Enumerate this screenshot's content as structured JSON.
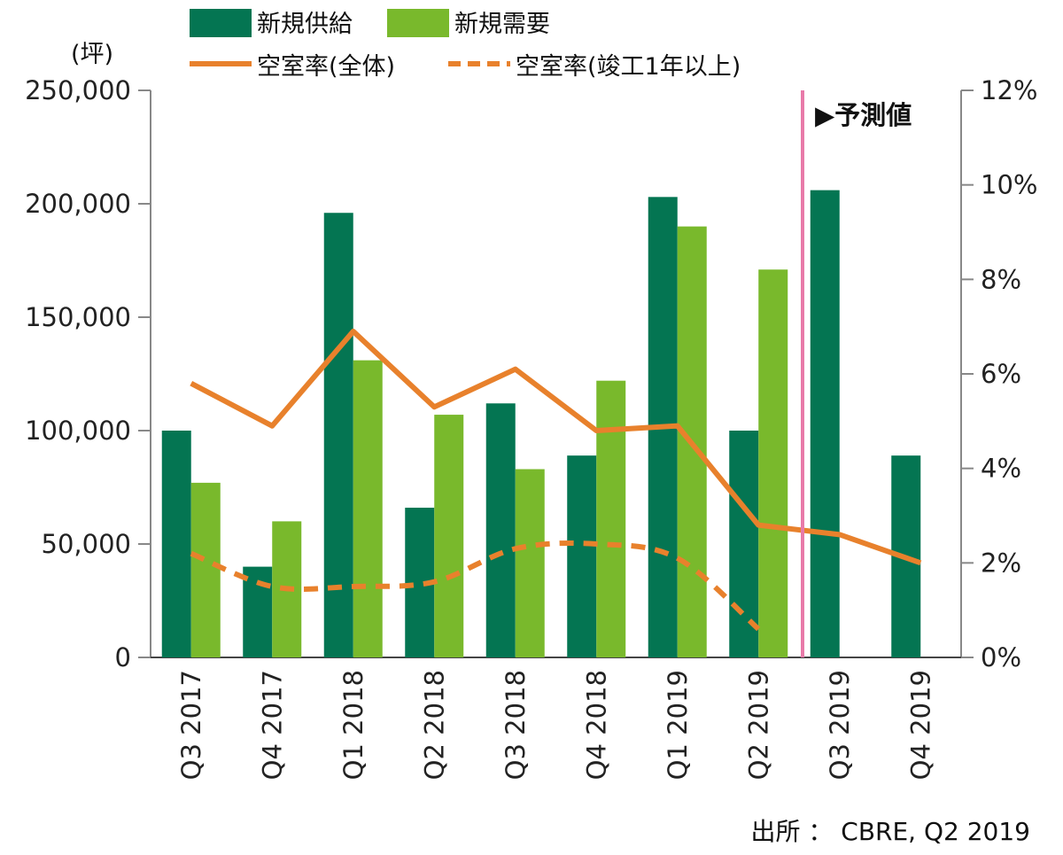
{
  "chart_data": {
    "type": "bar",
    "unit_label": "(坪)",
    "categories": [
      "Q3 2017",
      "Q4 2017",
      "Q1 2018",
      "Q2 2018",
      "Q3 2018",
      "Q4 2018",
      "Q1 2019",
      "Q2 2019",
      "Q3 2019",
      "Q4 2019"
    ],
    "y_left": {
      "range": [
        0,
        250000
      ],
      "ticks": [
        "0",
        "50,000",
        "100,000",
        "150,000",
        "200,000",
        "250,000"
      ]
    },
    "y_right": {
      "range": [
        0,
        12
      ],
      "ticks": [
        "0%",
        "2%",
        "4%",
        "6%",
        "8%",
        "10%",
        "12%"
      ]
    },
    "series": [
      {
        "name": "新規供給",
        "type": "bar",
        "axis": "left",
        "color": "#047552",
        "values": [
          100000,
          40000,
          196000,
          66000,
          112000,
          89000,
          203000,
          100000,
          206000,
          89000
        ]
      },
      {
        "name": "新規需要",
        "type": "bar",
        "axis": "left",
        "color": "#79b92c",
        "values": [
          77000,
          60000,
          131000,
          107000,
          83000,
          122000,
          190000,
          171000,
          null,
          null
        ]
      },
      {
        "name": "空室率(全体)",
        "type": "line",
        "axis": "right",
        "color": "#e8812c",
        "dash": false,
        "values": [
          5.8,
          4.9,
          6.9,
          5.3,
          6.1,
          4.8,
          4.9,
          2.8,
          2.6,
          2.0
        ]
      },
      {
        "name": "空室率(竣工1年以上)",
        "type": "line",
        "axis": "right",
        "color": "#e8812c",
        "dash": true,
        "values": [
          2.2,
          1.5,
          1.5,
          1.6,
          2.3,
          2.4,
          2.1,
          0.6,
          null,
          null
        ]
      }
    ],
    "forecast_label": "▶予測値",
    "forecast_start_category": "Q3 2019",
    "forecast_line_color": "#e87aa9",
    "source": "出所 ： CBRE, Q2 2019",
    "grid": false
  }
}
